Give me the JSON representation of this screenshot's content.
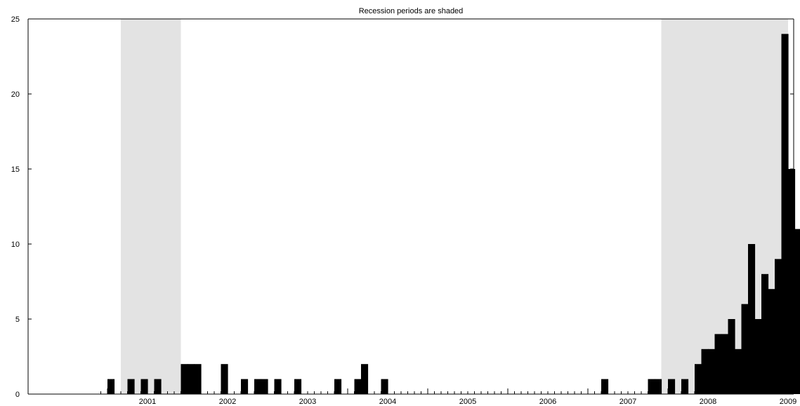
{
  "chart_data": {
    "type": "bar",
    "title": "Recession periods are shaded",
    "xlabel": "",
    "ylabel": "",
    "frequency": "monthly",
    "x_start": "2000-12",
    "x_end": "2009-06",
    "ylim": [
      0,
      25
    ],
    "yticks": [
      0,
      5,
      10,
      15,
      20,
      25
    ],
    "xtick_labels": [
      "2001",
      "2002",
      "2003",
      "2004",
      "2005",
      "2006",
      "2007",
      "2008",
      "2009"
    ],
    "grid": false,
    "legend": "none",
    "recession_shading": [
      {
        "start": "2001-03",
        "end": "2001-11"
      },
      {
        "start": "2007-12",
        "end": "2009-06"
      }
    ],
    "points": [
      {
        "x": "2001-01",
        "y": 1
      },
      {
        "x": "2001-04",
        "y": 1
      },
      {
        "x": "2001-06",
        "y": 1
      },
      {
        "x": "2001-08",
        "y": 1
      },
      {
        "x": "2001-12",
        "y": 2
      },
      {
        "x": "2002-01",
        "y": 2
      },
      {
        "x": "2002-02",
        "y": 2
      },
      {
        "x": "2002-06",
        "y": 2
      },
      {
        "x": "2002-09",
        "y": 1
      },
      {
        "x": "2002-11",
        "y": 1
      },
      {
        "x": "2002-12",
        "y": 1
      },
      {
        "x": "2003-02",
        "y": 1
      },
      {
        "x": "2003-05",
        "y": 1
      },
      {
        "x": "2003-11",
        "y": 1
      },
      {
        "x": "2004-02",
        "y": 1
      },
      {
        "x": "2004-03",
        "y": 2
      },
      {
        "x": "2004-06",
        "y": 1
      },
      {
        "x": "2007-03",
        "y": 1
      },
      {
        "x": "2007-10",
        "y": 1
      },
      {
        "x": "2007-11",
        "y": 1
      },
      {
        "x": "2008-01",
        "y": 1
      },
      {
        "x": "2008-03",
        "y": 1
      },
      {
        "x": "2008-05",
        "y": 2
      },
      {
        "x": "2008-06",
        "y": 3
      },
      {
        "x": "2008-07",
        "y": 3
      },
      {
        "x": "2008-08",
        "y": 4
      },
      {
        "x": "2008-09",
        "y": 4
      },
      {
        "x": "2008-10",
        "y": 5
      },
      {
        "x": "2008-11",
        "y": 3
      },
      {
        "x": "2008-12",
        "y": 6
      },
      {
        "x": "2009-01",
        "y": 10
      },
      {
        "x": "2009-02",
        "y": 5
      },
      {
        "x": "2009-03",
        "y": 8
      },
      {
        "x": "2009-04",
        "y": 7
      },
      {
        "x": "2009-05",
        "y": 9
      },
      {
        "x": "2009-06",
        "y": 24
      },
      {
        "x": "2009-07",
        "y": 15
      },
      {
        "x": "2009-08",
        "y": 11
      }
    ],
    "colors": {
      "bar": "#000000",
      "shade": "#e3e3e3",
      "axis": "#000000"
    }
  }
}
